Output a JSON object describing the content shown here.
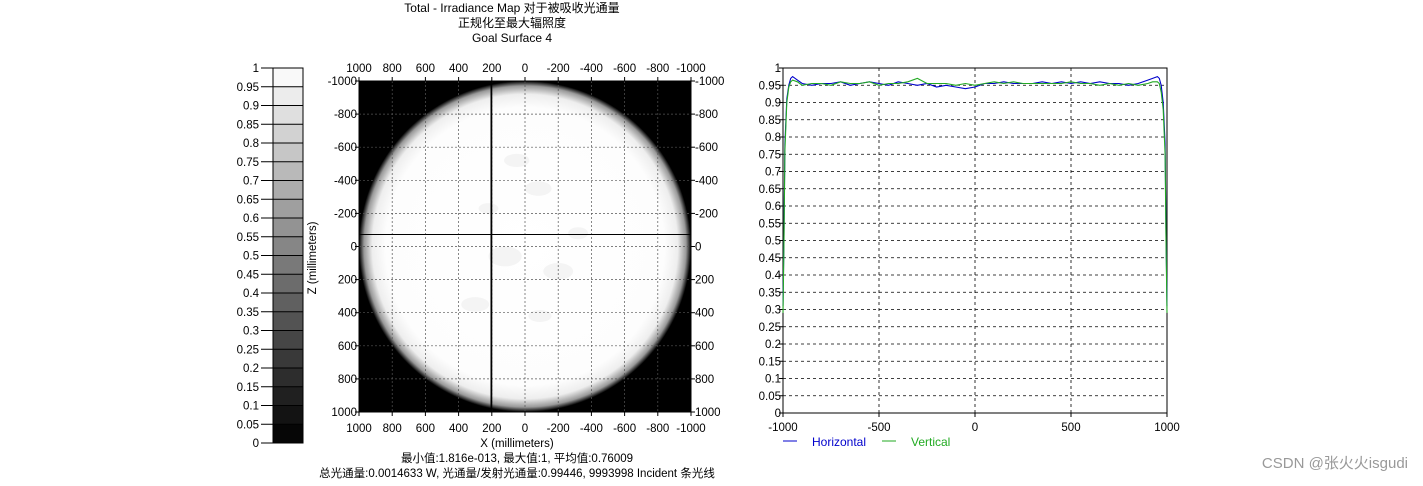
{
  "header": {
    "title_line1": "Total - Irradiance Map 对于被吸收光通量",
    "title_line2": "正规化至最大辐照度",
    "title_line3": "Goal Surface 4"
  },
  "footer": {
    "stats_line1": "最小值:1.816e-013, 最大值:1, 平均值:0.76009",
    "stats_line2": "总光通量:0.0014633 W, 光通量/发射光通量:0.99446, 9993998 Incident 条光线"
  },
  "watermark": "CSDN @张火火isgudi",
  "colors": {
    "background": "#ffffff",
    "map_background": "#000000",
    "map_spot": "#ffffff",
    "horizontal_series": "#0000cc",
    "vertical_series": "#22aa22",
    "grid": "#000000"
  },
  "colorbar": {
    "tick_labels": [
      "1",
      "0.95",
      "0.9",
      "0.85",
      "0.8",
      "0.75",
      "0.7",
      "0.65",
      "0.6",
      "0.55",
      "0.5",
      "0.45",
      "0.4",
      "0.35",
      "0.3",
      "0.25",
      "0.2",
      "0.15",
      "0.1",
      "0.05",
      "0"
    ],
    "range": [
      0,
      1
    ]
  },
  "chart_data": [
    {
      "type": "heatmap",
      "description_of_values": "normalized irradiance, circular spot of radius ~1000 mm centered at origin, ~0.95 inside, 0 outside",
      "xlabel": "X (millimeters)",
      "ylabel": "Z (millimeters)",
      "x_tick_labels": [
        "1000",
        "800",
        "600",
        "400",
        "200",
        "0",
        "-200",
        "-400",
        "-600",
        "-800",
        "-1000"
      ],
      "y_tick_labels": [
        "-1000",
        "-800",
        "-600",
        "-400",
        "-200",
        "0",
        "200",
        "400",
        "600",
        "800",
        "1000"
      ],
      "xlim": [
        1000,
        -1000
      ],
      "ylim": [
        -1000,
        1000
      ],
      "crosshair": {
        "x": 0,
        "z": 0
      },
      "spot_radius_mm": 1000,
      "spot_level": 0.95,
      "grid": true
    },
    {
      "type": "line",
      "x_tick_labels": [
        "-1000",
        "-500",
        "0",
        "500",
        "1000"
      ],
      "y_tick_labels": [
        "1",
        "0.95",
        "0.9",
        "0.85",
        "0.8",
        "0.75",
        "0.7",
        "0.65",
        "0.6",
        "0.55",
        "0.5",
        "0.45",
        "0.4",
        "0.35",
        "0.3",
        "0.25",
        "0.2",
        "0.15",
        "0.1",
        "0.05",
        "0"
      ],
      "xlim": [
        -1000,
        1000
      ],
      "ylim": [
        0,
        1
      ],
      "grid": true,
      "legend_position": "bottom",
      "series": [
        {
          "name": "Horizontal",
          "x": [
            -1000,
            -995,
            -990,
            -980,
            -970,
            -960,
            -950,
            -925,
            -900,
            -850,
            -800,
            -750,
            -700,
            -650,
            -600,
            -550,
            -500,
            -450,
            -400,
            -350,
            -300,
            -250,
            -200,
            -150,
            -100,
            -50,
            0,
            50,
            100,
            150,
            200,
            250,
            300,
            350,
            400,
            450,
            500,
            550,
            600,
            650,
            700,
            750,
            800,
            850,
            900,
            925,
            950,
            960,
            970,
            980,
            990,
            995,
            1000
          ],
          "values": [
            0.31,
            0.52,
            0.78,
            0.91,
            0.95,
            0.97,
            0.975,
            0.965,
            0.955,
            0.95,
            0.955,
            0.955,
            0.96,
            0.95,
            0.955,
            0.96,
            0.955,
            0.95,
            0.96,
            0.955,
            0.95,
            0.955,
            0.945,
            0.95,
            0.945,
            0.94,
            0.945,
            0.955,
            0.955,
            0.96,
            0.955,
            0.955,
            0.955,
            0.96,
            0.955,
            0.96,
            0.955,
            0.96,
            0.955,
            0.96,
            0.955,
            0.955,
            0.95,
            0.955,
            0.965,
            0.97,
            0.975,
            0.97,
            0.95,
            0.9,
            0.78,
            0.52,
            0.31
          ]
        },
        {
          "name": "Vertical",
          "x": [
            -1000,
            -995,
            -990,
            -980,
            -970,
            -960,
            -950,
            -925,
            -900,
            -850,
            -800,
            -750,
            -700,
            -650,
            -600,
            -550,
            -500,
            -450,
            -400,
            -350,
            -300,
            -250,
            -200,
            -150,
            -100,
            -50,
            0,
            50,
            100,
            150,
            200,
            250,
            300,
            350,
            400,
            450,
            500,
            550,
            600,
            650,
            700,
            750,
            800,
            850,
            900,
            925,
            950,
            960,
            970,
            980,
            990,
            995,
            1000
          ],
          "values": [
            0.29,
            0.5,
            0.76,
            0.9,
            0.945,
            0.96,
            0.965,
            0.96,
            0.95,
            0.955,
            0.955,
            0.95,
            0.96,
            0.955,
            0.955,
            0.96,
            0.95,
            0.955,
            0.955,
            0.96,
            0.97,
            0.955,
            0.955,
            0.955,
            0.95,
            0.955,
            0.95,
            0.955,
            0.96,
            0.955,
            0.96,
            0.955,
            0.955,
            0.955,
            0.955,
            0.955,
            0.96,
            0.955,
            0.955,
            0.95,
            0.955,
            0.95,
            0.955,
            0.95,
            0.955,
            0.96,
            0.96,
            0.955,
            0.93,
            0.88,
            0.75,
            0.5,
            0.29
          ]
        }
      ]
    }
  ]
}
